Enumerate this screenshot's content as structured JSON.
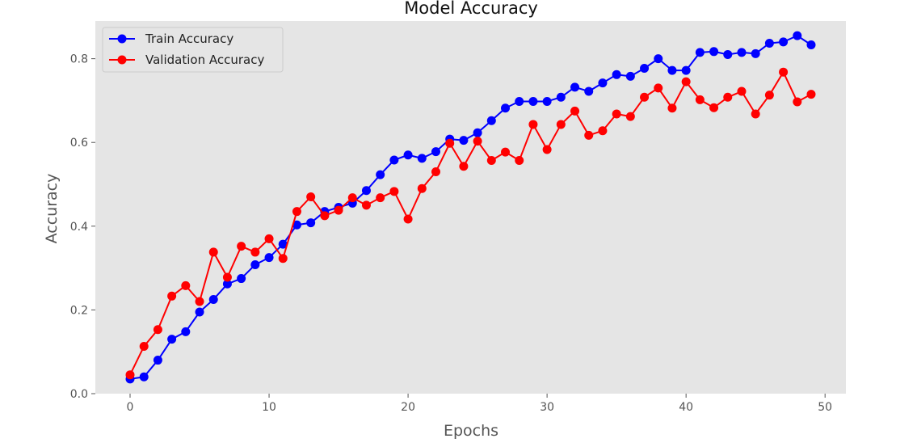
{
  "chart_data": {
    "type": "line",
    "title": "Model Accuracy",
    "xlabel": "Epochs",
    "ylabel": "Accuracy",
    "xlim": [
      -2.5,
      51.5
    ],
    "ylim": [
      0.0,
      0.89
    ],
    "xticks": [
      0,
      10,
      20,
      30,
      40,
      50
    ],
    "yticks": [
      0.0,
      0.2,
      0.4,
      0.6,
      0.8
    ],
    "xtick_labels": [
      "0",
      "10",
      "20",
      "30",
      "40",
      "50"
    ],
    "ytick_labels": [
      "0.0",
      "0.2",
      "0.4",
      "0.6",
      "0.8"
    ],
    "grid": false,
    "legend_position": "top-left",
    "x": [
      0,
      1,
      2,
      3,
      4,
      5,
      6,
      7,
      8,
      9,
      10,
      11,
      12,
      13,
      14,
      15,
      16,
      17,
      18,
      19,
      20,
      21,
      22,
      23,
      24,
      25,
      26,
      27,
      28,
      29,
      30,
      31,
      32,
      33,
      34,
      35,
      36,
      37,
      38,
      39,
      40,
      41,
      42,
      43,
      44,
      45,
      46,
      47,
      48,
      49
    ],
    "series": [
      {
        "name": "Train Accuracy",
        "color": "#0000ff",
        "values": [
          0.035,
          0.04,
          0.08,
          0.13,
          0.148,
          0.195,
          0.225,
          0.262,
          0.275,
          0.308,
          0.325,
          0.357,
          0.403,
          0.408,
          0.435,
          0.445,
          0.455,
          0.485,
          0.523,
          0.558,
          0.57,
          0.562,
          0.578,
          0.608,
          0.605,
          0.623,
          0.652,
          0.682,
          0.698,
          0.698,
          0.698,
          0.708,
          0.732,
          0.722,
          0.742,
          0.762,
          0.758,
          0.777,
          0.8,
          0.772,
          0.772,
          0.815,
          0.817,
          0.81,
          0.815,
          0.812,
          0.837,
          0.84,
          0.855,
          0.833
        ]
      },
      {
        "name": "Validation Accuracy",
        "color": "#ff0000",
        "values": [
          0.045,
          0.113,
          0.153,
          0.233,
          0.258,
          0.22,
          0.338,
          0.278,
          0.352,
          0.338,
          0.37,
          0.323,
          0.435,
          0.47,
          0.425,
          0.438,
          0.468,
          0.45,
          0.468,
          0.483,
          0.417,
          0.49,
          0.53,
          0.598,
          0.543,
          0.603,
          0.557,
          0.577,
          0.557,
          0.643,
          0.583,
          0.643,
          0.675,
          0.617,
          0.628,
          0.668,
          0.662,
          0.708,
          0.73,
          0.682,
          0.745,
          0.702,
          0.683,
          0.708,
          0.722,
          0.668,
          0.713,
          0.768,
          0.697,
          0.715
        ]
      }
    ]
  }
}
